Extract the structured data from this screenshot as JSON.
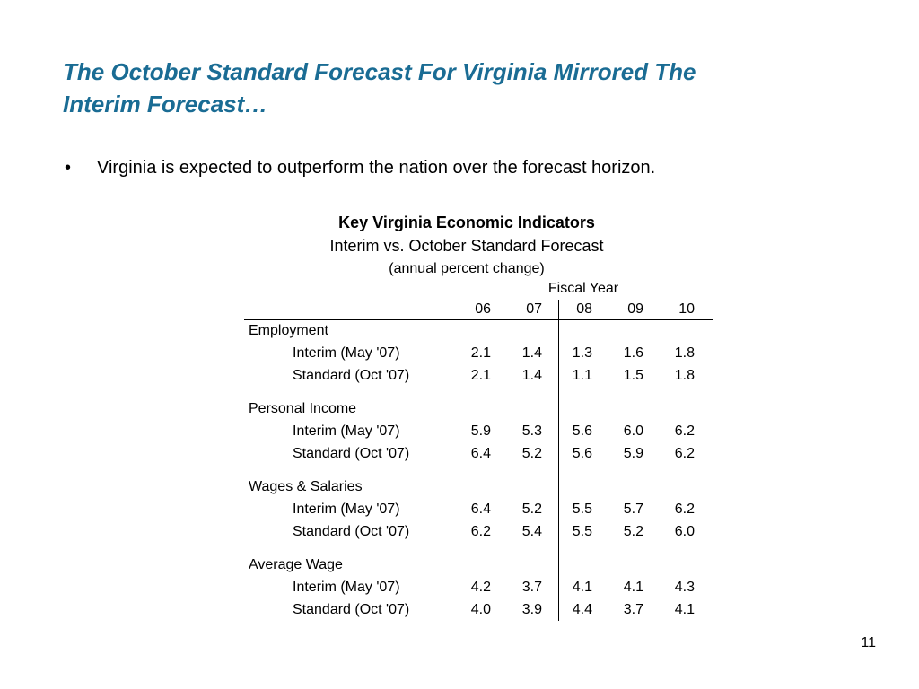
{
  "slide": {
    "title_line1": "The October Standard Forecast For Virginia Mirrored The",
    "title_line2": "Interim Forecast…",
    "title_color": "#1a6c94",
    "bullet_symbol": "•",
    "bullet_text": "Virginia is expected to outperform the nation over the forecast horizon.",
    "page_number": "11"
  },
  "table": {
    "title": "Key Virginia Economic Indicators",
    "subtitle": "Interim vs. October Standard Forecast",
    "unit": "(annual percent change)",
    "column_group": "Fiscal Year",
    "columns": [
      "06",
      "07",
      "08",
      "09",
      "10"
    ],
    "groups": [
      {
        "name": "Employment",
        "rows": [
          {
            "label": "Interim (May '07)",
            "values": [
              "2.1",
              "1.4",
              "1.3",
              "1.6",
              "1.8"
            ]
          },
          {
            "label": "Standard (Oct '07)",
            "values": [
              "2.1",
              "1.4",
              "1.1",
              "1.5",
              "1.8"
            ]
          }
        ]
      },
      {
        "name": "Personal Income",
        "rows": [
          {
            "label": "Interim (May '07)",
            "values": [
              "5.9",
              "5.3",
              "5.6",
              "6.0",
              "6.2"
            ]
          },
          {
            "label": "Standard (Oct '07)",
            "values": [
              "6.4",
              "5.2",
              "5.6",
              "5.9",
              "6.2"
            ]
          }
        ]
      },
      {
        "name": "Wages & Salaries",
        "rows": [
          {
            "label": "Interim (May '07)",
            "values": [
              "6.4",
              "5.2",
              "5.5",
              "5.7",
              "6.2"
            ]
          },
          {
            "label": "Standard (Oct '07)",
            "values": [
              "6.2",
              "5.4",
              "5.5",
              "5.2",
              "6.0"
            ]
          }
        ]
      },
      {
        "name": "Average Wage",
        "rows": [
          {
            "label": "Interim (May '07)",
            "values": [
              "4.2",
              "3.7",
              "4.1",
              "4.1",
              "4.3"
            ]
          },
          {
            "label": "Standard (Oct '07)",
            "values": [
              "4.0",
              "3.9",
              "4.4",
              "3.7",
              "4.1"
            ]
          }
        ]
      }
    ]
  }
}
